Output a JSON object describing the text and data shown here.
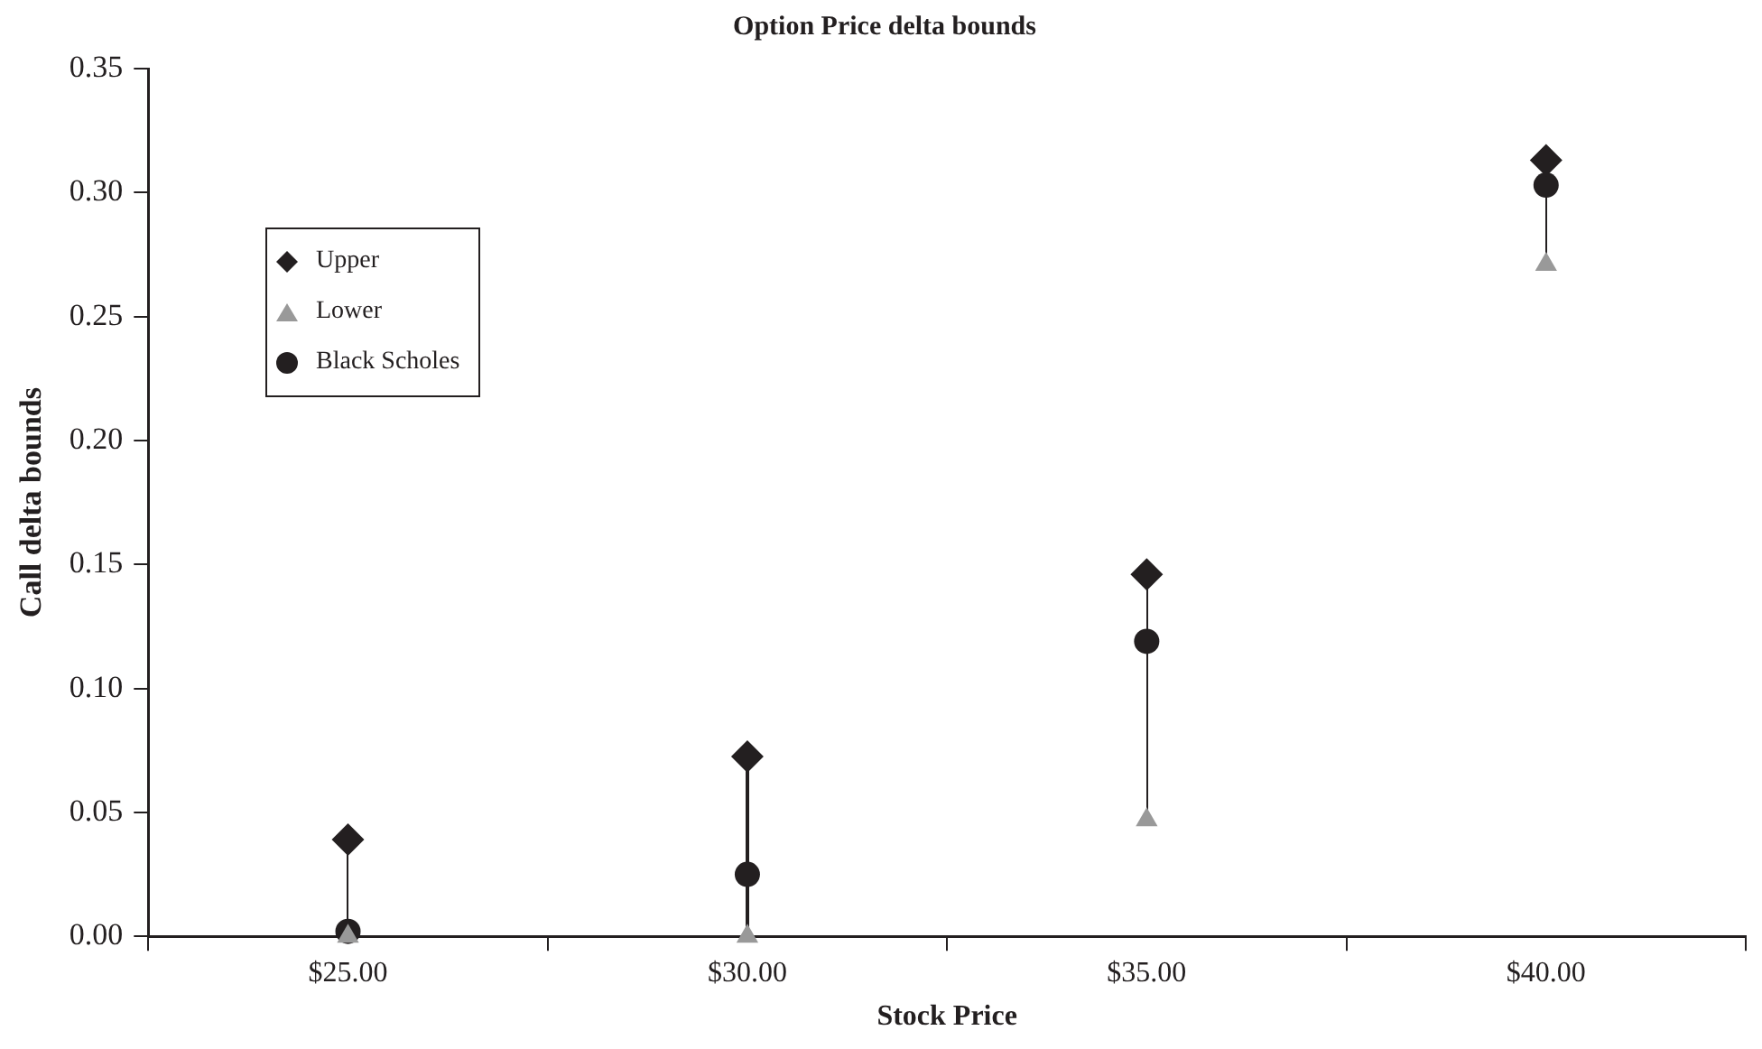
{
  "chart_data": {
    "type": "scatter",
    "title": "Option Price delta bounds",
    "xlabel": "Stock Price",
    "ylabel": "Call delta bounds",
    "categories": [
      "$25.00",
      "$30.00",
      "$35.00",
      "$40.00"
    ],
    "series": [
      {
        "name": "Upper",
        "color": "#231f20",
        "marker": "diamond",
        "values": [
          0.039,
          0.0725,
          0.146,
          0.313
        ]
      },
      {
        "name": "Lower",
        "color": "#999999",
        "marker": "triangle",
        "values": [
          0,
          0,
          0.047,
          0.271
        ]
      },
      {
        "name": "Black Scholes",
        "color": "#231f20",
        "marker": "circle",
        "values": [
          0.002,
          0.025,
          0.119,
          0.303
        ]
      }
    ],
    "ylim": [
      0,
      0.35
    ],
    "yticks": [
      {
        "value": 0,
        "label": "0.00"
      },
      0.05,
      {
        "value": 0.1,
        "label": "0.10"
      },
      0.15,
      {
        "value": 0.2,
        "label": "0.20"
      },
      0.25,
      {
        "value": 0.3,
        "label": "0.30"
      },
      0.35
    ],
    "grid": false,
    "legend": "top left"
  }
}
